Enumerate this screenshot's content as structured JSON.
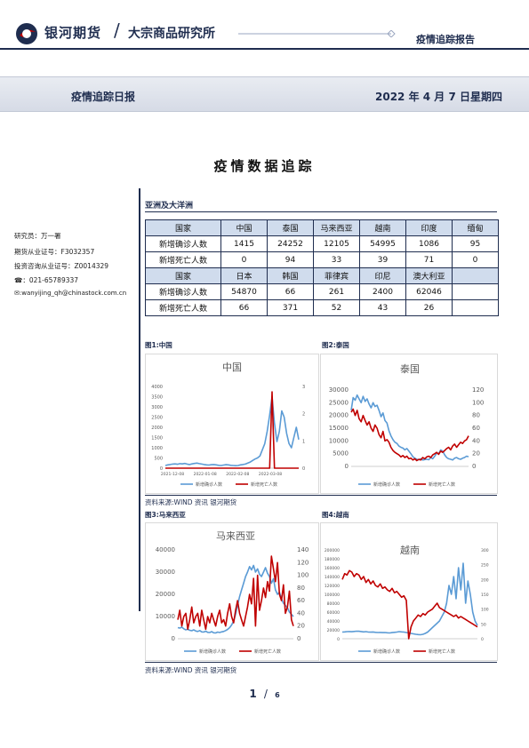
{
  "header": {
    "brand": "银河期货",
    "separator": "/",
    "institute": "大宗商品研究所",
    "report_type": "疫情追踪报告"
  },
  "banner": {
    "title": "疫情追踪日报",
    "date": "2022 年 4 月 7 日星期四"
  },
  "doc_title": "疫情数据追踪",
  "analyst": {
    "name_line": "研究员：万一署",
    "license_line": "期货从业证号：F3032357",
    "advisory_line": "投资咨询从业证号：Z0014329",
    "phone_line": "☎：021-65789337",
    "email_line": "✉:wanyijing_qh@chinastock.com.cn"
  },
  "region": {
    "title": "亚洲及大洋洲",
    "row_labels": {
      "country": "国家",
      "cases": "新增确诊人数",
      "deaths": "新增死亡人数"
    },
    "block1": {
      "countries": [
        "中国",
        "泰国",
        "马来西亚",
        "越南",
        "印度",
        "缅甸"
      ],
      "cases": [
        "1415",
        "24252",
        "12105",
        "54995",
        "1086",
        "95"
      ],
      "deaths": [
        "0",
        "94",
        "33",
        "39",
        "71",
        "0"
      ]
    },
    "block2": {
      "countries": [
        "日本",
        "韩国",
        "菲律宾",
        "印尼",
        "澳大利亚",
        ""
      ],
      "cases": [
        "54870",
        "66",
        "261",
        "2400",
        "62046",
        ""
      ],
      "deaths": [
        "66",
        "371",
        "52",
        "43",
        "26",
        ""
      ]
    }
  },
  "figures": {
    "fig1_caption": "图1:中国",
    "fig2_caption": "图2:泰国",
    "fig3_caption": "图3:马来西亚",
    "fig4_caption": "图4:越南",
    "source1": "资料来源:WIND 资讯    银河期货",
    "source2": "资料来源:WIND 资讯    银河期货"
  },
  "page": {
    "current": "1",
    "sep": "/",
    "total": "6"
  },
  "colors": {
    "cases": "#5b9bd5",
    "deaths": "#c00000",
    "navy": "#1f2d4f"
  },
  "chart_data": [
    {
      "type": "line",
      "title": "中国",
      "x_ticks": [
        "2021-12-08",
        "2022-01-08",
        "2022-02-08",
        "2022-03-08"
      ],
      "y_left_ticks": [
        "0",
        "500",
        "1000",
        "1500",
        "2000",
        "2500",
        "3000",
        "3500",
        "4000"
      ],
      "y_right_ticks": [
        "0",
        "1",
        "2",
        "3"
      ],
      "ylim_left": [
        0,
        4000
      ],
      "ylim_right": [
        0,
        3
      ],
      "series": [
        {
          "name": "新增确诊人数",
          "axis": "left",
          "values": [
            130,
            160,
            180,
            200,
            210,
            190,
            220,
            210,
            230,
            200,
            180,
            210,
            230,
            250,
            220,
            200,
            180,
            160,
            150,
            170,
            180,
            160,
            140,
            130,
            150,
            170,
            160,
            140,
            130,
            120,
            130,
            160,
            180,
            200,
            250,
            300,
            380,
            450,
            500,
            600,
            900,
            1200,
            1800,
            2600,
            3500,
            2200,
            1300,
            1800,
            2800,
            2500,
            1700,
            1200,
            1000,
            1500,
            2000,
            1400
          ]
        },
        {
          "name": "新增死亡人数",
          "axis": "right",
          "values": [
            0,
            0,
            0,
            0,
            0,
            0,
            0,
            0,
            0,
            0,
            0,
            0,
            0,
            0,
            0,
            0,
            0,
            0,
            0,
            0,
            0,
            0,
            0,
            0,
            0,
            0,
            0,
            0,
            0,
            0,
            0,
            0,
            0,
            0,
            0,
            0,
            0,
            0,
            0,
            0,
            0,
            0,
            0,
            0,
            2.8,
            0,
            0,
            0,
            0,
            0,
            0,
            0,
            0,
            0,
            0,
            0
          ]
        }
      ]
    },
    {
      "type": "line",
      "title": "泰国",
      "y_left_ticks": [
        "0",
        "5000",
        "10000",
        "15000",
        "20000",
        "25000",
        "30000"
      ],
      "y_right_ticks": [
        "0",
        "20",
        "40",
        "60",
        "80",
        "100",
        "120"
      ],
      "ylim_left": [
        0,
        30000
      ],
      "ylim_right": [
        0,
        120
      ],
      "series": [
        {
          "name": "新增确诊人数",
          "axis": "left",
          "values": [
            22000,
            27000,
            26000,
            28000,
            26500,
            25000,
            27500,
            25500,
            26500,
            24500,
            23000,
            25000,
            23500,
            24000,
            22000,
            19500,
            21000,
            18000,
            17000,
            14000,
            12000,
            10500,
            9500,
            9000,
            8000,
            7500,
            7200,
            6500,
            7000,
            6000,
            5000,
            3800,
            3200,
            2800,
            2600,
            3000,
            2500,
            2700,
            2800,
            2600,
            3500,
            3000,
            4000,
            5200,
            5000,
            6500,
            6000,
            4500,
            3500,
            3000,
            2800,
            2500,
            3200,
            3500,
            3000,
            2800,
            3200,
            3500,
            4000,
            3800
          ]
        },
        {
          "name": "新增死亡人数",
          "axis": "right",
          "values": [
            85,
            90,
            80,
            88,
            75,
            70,
            80,
            72,
            65,
            70,
            60,
            55,
            65,
            60,
            50,
            45,
            55,
            40,
            42,
            38,
            30,
            25,
            22,
            20,
            18,
            15,
            17,
            14,
            16,
            12,
            13,
            10,
            12,
            9,
            11,
            10,
            14,
            12,
            15,
            16,
            14,
            18,
            20,
            22,
            19,
            24,
            22,
            25,
            28,
            30,
            26,
            32,
            35,
            30,
            34,
            38,
            36,
            40,
            42,
            48
          ]
        }
      ]
    },
    {
      "type": "line",
      "title": "马来西亚",
      "y_left_ticks": [
        "0",
        "10000",
        "20000",
        "30000",
        "40000"
      ],
      "y_right_ticks": [
        "0",
        "20",
        "40",
        "60",
        "80",
        "100",
        "120",
        "140"
      ],
      "ylim_left": [
        0,
        40000
      ],
      "ylim_right": [
        0,
        140
      ],
      "series": [
        {
          "name": "新增确诊人数",
          "axis": "left",
          "values": [
            5000,
            4800,
            5200,
            4500,
            4000,
            4300,
            3800,
            3600,
            4000,
            3500,
            3300,
            3700,
            3100,
            3000,
            3400,
            2900,
            2800,
            3200,
            2700,
            2600,
            3000,
            2800,
            3100,
            3300,
            3700,
            4200,
            5000,
            6200,
            8000,
            11000,
            15000,
            19000,
            22000,
            25000,
            28000,
            30000,
            32500,
            31000,
            33000,
            30000,
            31500,
            29000,
            28000,
            30000,
            32000,
            29500,
            28000,
            25000,
            27000,
            22000,
            20000,
            21000,
            18000,
            16000,
            15000,
            14000,
            12000,
            11000,
            10000
          ]
        },
        {
          "name": "新增死亡人数",
          "axis": "right",
          "values": [
            30,
            45,
            20,
            35,
            40,
            15,
            30,
            50,
            25,
            35,
            40,
            20,
            45,
            30,
            15,
            35,
            25,
            40,
            30,
            20,
            35,
            45,
            25,
            30,
            20,
            40,
            55,
            35,
            25,
            45,
            60,
            40,
            30,
            20,
            35,
            50,
            70,
            55,
            95,
            20,
            100,
            45,
            60,
            80,
            65,
            90,
            75,
            130,
            110,
            90,
            120,
            70,
            60,
            85,
            40,
            50,
            75,
            30,
            20
          ]
        }
      ]
    },
    {
      "type": "line",
      "title": "越南",
      "y_left_ticks": [
        "0",
        "20000",
        "40000",
        "60000",
        "80000",
        "100000",
        "120000",
        "140000",
        "160000",
        "180000",
        "200000"
      ],
      "y_right_ticks": [
        "0",
        "50",
        "100",
        "150",
        "200",
        "250",
        "300"
      ],
      "ylim_left": [
        0,
        200000
      ],
      "ylim_right": [
        0,
        300
      ],
      "series": [
        {
          "name": "新增确诊人数",
          "axis": "left",
          "values": [
            15000,
            15500,
            16000,
            16200,
            15800,
            16500,
            17000,
            16800,
            16200,
            15500,
            16000,
            15000,
            14800,
            15200,
            14500,
            14000,
            14200,
            13800,
            14000,
            13500,
            13000,
            13800,
            14500,
            15000,
            16000,
            15500,
            15000,
            14000,
            13000,
            12000,
            11000,
            10000,
            9500,
            9000,
            10000,
            12000,
            15000,
            20000,
            25000,
            30000,
            35000,
            40000,
            50000,
            60000,
            80000,
            120000,
            100000,
            140000,
            90000,
            160000,
            110000,
            170000,
            80000,
            130000,
            100000,
            60000,
            40000,
            30000
          ]
        },
        {
          "name": "新增死亡人数",
          "axis": "right",
          "values": [
            200,
            220,
            215,
            230,
            225,
            210,
            220,
            215,
            200,
            210,
            190,
            200,
            185,
            195,
            180,
            175,
            185,
            170,
            175,
            165,
            160,
            170,
            155,
            160,
            150,
            140,
            145,
            130,
            0,
            40,
            60,
            70,
            80,
            75,
            85,
            80,
            90,
            95,
            100,
            110,
            120,
            105,
            100,
            95,
            90,
            85,
            80,
            75,
            80,
            70,
            75,
            70,
            65,
            60,
            55,
            50,
            45,
            40
          ]
        }
      ]
    }
  ]
}
